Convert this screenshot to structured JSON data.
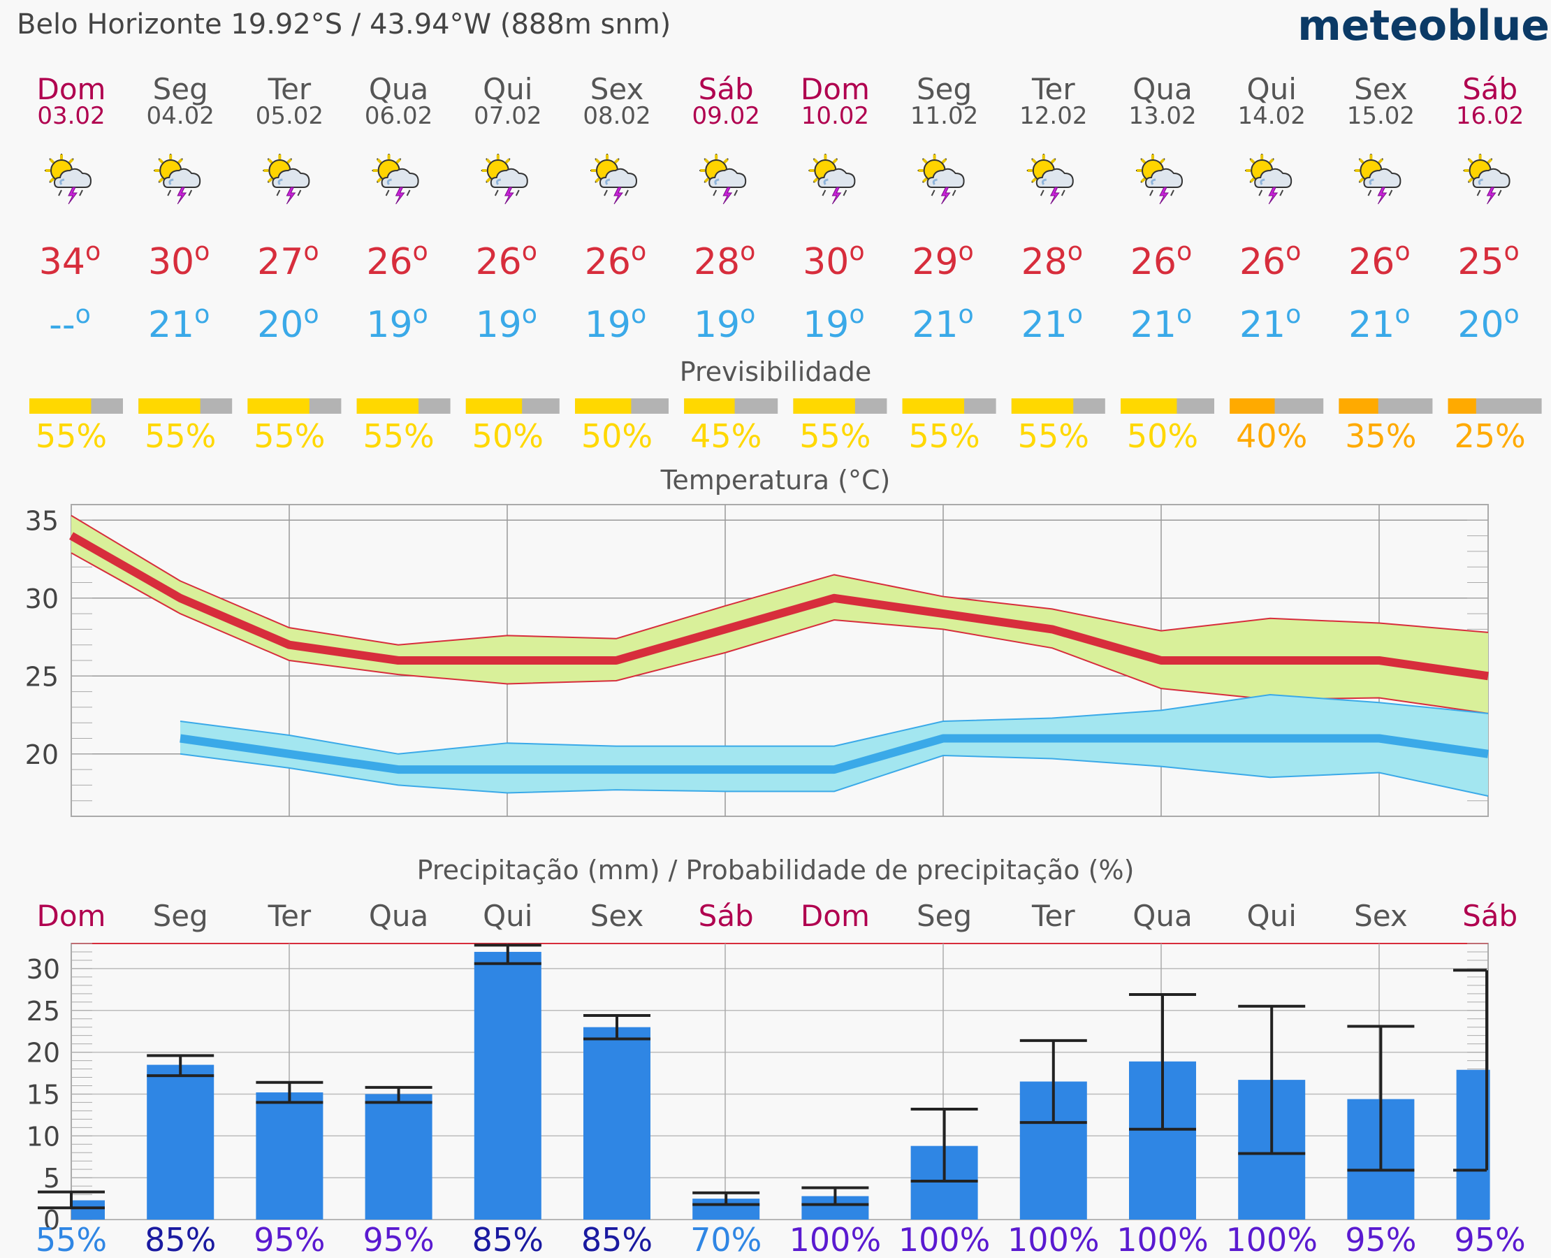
{
  "header": {
    "location_text": "Belo Horizonte  19.92°S / 43.94°W (888m snm)",
    "logo": "meteoblue"
  },
  "colors": {
    "weekend": "#b0004f",
    "weekday": "#555555",
    "tmax": "#d72d3c",
    "tmin": "#3aa9e8",
    "predict_high": "#ffd800",
    "predict_mid": "#ffaa00",
    "predict_rest": "#b3b3b3",
    "bar": "#2f86e4",
    "max_band": "#d9f09a",
    "min_band": "#a3e6f0",
    "prob_light": "#2f86e4",
    "prob_dark": "#1a1aa0",
    "prob_violet": "#5a1ad0"
  },
  "days": [
    {
      "name": "Dom",
      "date": "03.02",
      "weekend": true,
      "icon": "sun-cloud-thunder-icon",
      "tmax": "34°",
      "tmin": "--°",
      "predict": "55%",
      "predict_value": 0.55,
      "prob": "55%"
    },
    {
      "name": "Seg",
      "date": "04.02",
      "weekend": false,
      "icon": "sun-cloud-thunder-icon",
      "tmax": "30°",
      "tmin": "21°",
      "predict": "55%",
      "predict_value": 0.55,
      "prob": "85%"
    },
    {
      "name": "Ter",
      "date": "05.02",
      "weekend": false,
      "icon": "sun-cloud-thunder-icon",
      "tmax": "27°",
      "tmin": "20°",
      "predict": "55%",
      "predict_value": 0.55,
      "prob": "95%"
    },
    {
      "name": "Qua",
      "date": "06.02",
      "weekend": false,
      "icon": "sun-cloud-thunder-icon",
      "tmax": "26°",
      "tmin": "19°",
      "predict": "55%",
      "predict_value": 0.55,
      "prob": "95%"
    },
    {
      "name": "Qui",
      "date": "07.02",
      "weekend": false,
      "icon": "sun-cloud-thunder-icon",
      "tmax": "26°",
      "tmin": "19°",
      "predict": "50%",
      "predict_value": 0.5,
      "prob": "85%"
    },
    {
      "name": "Sex",
      "date": "08.02",
      "weekend": false,
      "icon": "sun-cloud-thunder-icon",
      "tmax": "26°",
      "tmin": "19°",
      "predict": "50%",
      "predict_value": 0.5,
      "prob": "85%"
    },
    {
      "name": "Sáb",
      "date": "09.02",
      "weekend": true,
      "icon": "sun-cloud-thunder-icon",
      "tmax": "28°",
      "tmin": "19°",
      "predict": "45%",
      "predict_value": 0.45,
      "prob": "70%"
    },
    {
      "name": "Dom",
      "date": "10.02",
      "weekend": true,
      "icon": "sun-cloud-thunder-icon",
      "tmax": "30°",
      "tmin": "19°",
      "predict": "55%",
      "predict_value": 0.55,
      "prob": "100%"
    },
    {
      "name": "Seg",
      "date": "11.02",
      "weekend": false,
      "icon": "sun-cloud-thunder-icon",
      "tmax": "29°",
      "tmin": "21°",
      "predict": "55%",
      "predict_value": 0.55,
      "prob": "100%"
    },
    {
      "name": "Ter",
      "date": "12.02",
      "weekend": false,
      "icon": "sun-cloud-thunder-icon",
      "tmax": "28°",
      "tmin": "21°",
      "predict": "55%",
      "predict_value": 0.55,
      "prob": "100%"
    },
    {
      "name": "Qua",
      "date": "13.02",
      "weekend": false,
      "icon": "sun-cloud-thunder-icon",
      "tmax": "26°",
      "tmin": "21°",
      "predict": "50%",
      "predict_value": 0.5,
      "prob": "100%"
    },
    {
      "name": "Qui",
      "date": "14.02",
      "weekend": false,
      "icon": "sun-cloud-thunder-icon",
      "tmax": "26°",
      "tmin": "21°",
      "predict": "40%",
      "predict_value": 0.4,
      "prob": "100%"
    },
    {
      "name": "Sex",
      "date": "15.02",
      "weekend": false,
      "icon": "sun-cloud-thunder-icon",
      "tmax": "26°",
      "tmin": "21°",
      "predict": "35%",
      "predict_value": 0.35,
      "prob": "95%"
    },
    {
      "name": "Sáb",
      "date": "16.02",
      "weekend": true,
      "icon": "sun-cloud-thunder-icon",
      "tmax": "25°",
      "tmin": "20°",
      "predict": "25%",
      "predict_value": 0.25,
      "prob": "95%"
    }
  ],
  "chart_data": [
    {
      "type": "line",
      "title": "Temperatura (°C)",
      "ylim": [
        16,
        36
      ],
      "yticks": [
        20,
        25,
        30,
        35
      ],
      "x": [
        "03.02",
        "04.02",
        "05.02",
        "06.02",
        "07.02",
        "08.02",
        "09.02",
        "10.02",
        "11.02",
        "12.02",
        "13.02",
        "14.02",
        "15.02",
        "16.02"
      ],
      "series": [
        {
          "key": "tmax",
          "values": [
            34,
            30,
            27,
            26,
            26,
            26,
            28,
            30,
            29,
            28,
            26,
            26,
            26,
            25
          ]
        },
        {
          "key": "tmax_high",
          "values": [
            35.3,
            31.1,
            28.1,
            27,
            27.6,
            27.4,
            29.5,
            31.5,
            30.1,
            29.3,
            27.9,
            28.7,
            28.4,
            27.8
          ]
        },
        {
          "key": "tmax_low",
          "values": [
            32.9,
            29,
            26,
            25.1,
            24.5,
            24.7,
            26.5,
            28.6,
            28,
            26.8,
            24.2,
            23.5,
            23.6,
            22.6
          ]
        },
        {
          "key": "tmin",
          "values": [
            null,
            21,
            20,
            19,
            19,
            19,
            19,
            19,
            21,
            21,
            21,
            21,
            21,
            20
          ]
        },
        {
          "key": "tmin_high",
          "values": [
            null,
            22.1,
            21.2,
            20,
            20.7,
            20.5,
            20.5,
            20.5,
            22.1,
            22.3,
            22.8,
            23.8,
            23.3,
            22.6
          ]
        },
        {
          "key": "tmin_low",
          "values": [
            null,
            20,
            19.1,
            18,
            17.5,
            17.7,
            17.6,
            17.6,
            19.9,
            19.7,
            19.2,
            18.5,
            18.8,
            17.3
          ]
        }
      ]
    },
    {
      "type": "bar",
      "title": "Precipitação (mm) / Probabilidade de precipitação (%)",
      "categories": [
        "Dom",
        "Seg",
        "Ter",
        "Qua",
        "Qui",
        "Sex",
        "Sáb",
        "Dom",
        "Seg",
        "Ter",
        "Qua",
        "Qui",
        "Sex",
        "Sáb"
      ],
      "ylim": [
        0,
        33
      ],
      "yticks": [
        0,
        5,
        10,
        15,
        20,
        25,
        30
      ],
      "values": [
        2.3,
        18.5,
        15.2,
        15,
        32,
        23,
        2.5,
        2.8,
        8.8,
        16.5,
        18.9,
        16.7,
        14.4,
        17.9
      ],
      "range_low": [
        1.4,
        17.2,
        14,
        14,
        30.6,
        21.6,
        1.8,
        1.8,
        4.6,
        11.6,
        10.8,
        7.9,
        5.9,
        5.9
      ],
      "range_high": [
        3.3,
        19.6,
        16.4,
        15.8,
        32.8,
        24.4,
        3.2,
        3.8,
        13.2,
        21.4,
        26.9,
        25.5,
        23.1,
        29.8
      ],
      "probability_pct": [
        55,
        85,
        95,
        95,
        85,
        85,
        70,
        100,
        100,
        100,
        100,
        100,
        95,
        95
      ]
    }
  ]
}
